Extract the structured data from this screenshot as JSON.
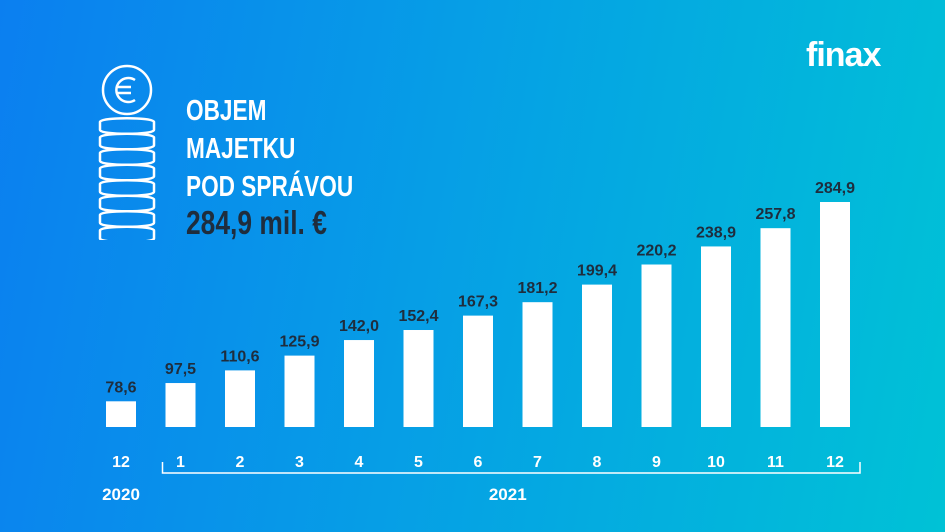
{
  "brand": {
    "logo_text": "finax"
  },
  "header": {
    "title_lines": [
      "OBJEM",
      "MAJETKU",
      "POD SPRÁVOU"
    ],
    "total": "284,9 mil. €"
  },
  "icons": {
    "coins": "euro-coin-stack-icon"
  },
  "colors": {
    "bar": "#ffffff",
    "label": "#1f2d3d",
    "bg_left": "#0b7ff0",
    "bg_right": "#00c2d6"
  },
  "chart_data": {
    "type": "bar",
    "categories": [
      "12",
      "1",
      "2",
      "3",
      "4",
      "5",
      "6",
      "7",
      "8",
      "9",
      "10",
      "11",
      "12"
    ],
    "values": [
      78.6,
      97.5,
      110.6,
      125.9,
      142.0,
      152.4,
      167.3,
      181.2,
      199.4,
      220.2,
      238.9,
      257.8,
      284.9
    ],
    "value_labels": [
      "78,6",
      "97,5",
      "110,6",
      "125,9",
      "142,0",
      "152,4",
      "167,3",
      "181,2",
      "199,4",
      "220,2",
      "238,9",
      "257,8",
      "284,9"
    ],
    "year_groups": [
      {
        "label": "2020",
        "from": 0,
        "to": 0
      },
      {
        "label": "2021",
        "from": 1,
        "to": 12
      }
    ],
    "unit": "mil. €",
    "grid": false,
    "ylim": [
      52,
      290
    ]
  }
}
